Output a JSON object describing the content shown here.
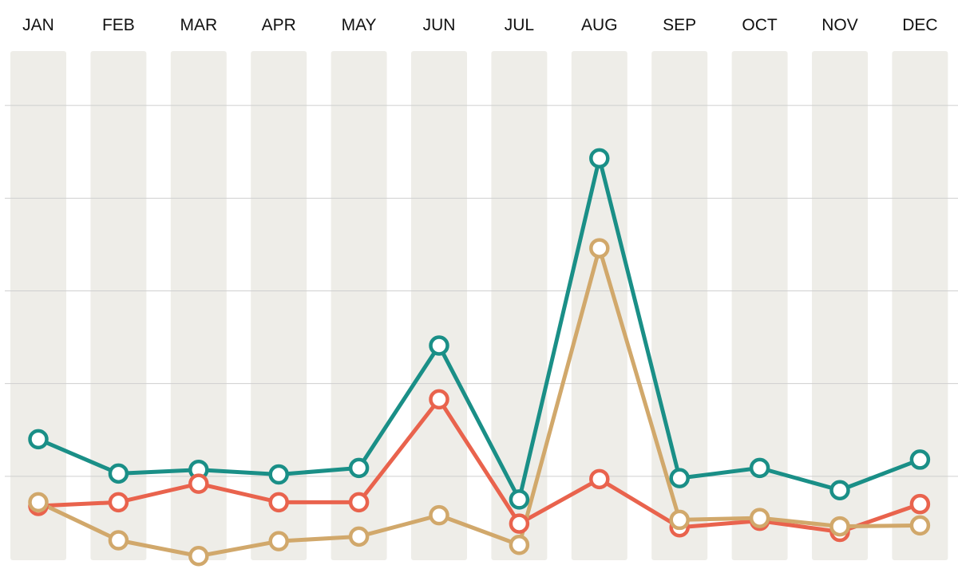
{
  "chart_data": {
    "type": "line",
    "categories": [
      "JAN",
      "FEB",
      "MAR",
      "APR",
      "MAY",
      "JUN",
      "JUL",
      "AUG",
      "SEP",
      "OCT",
      "NOV",
      "DEC"
    ],
    "ylim": [
      0,
      6
    ],
    "grid": true,
    "series": [
      {
        "color": "#1a8f87",
        "values": [
          1.4,
          1.03,
          1.07,
          1.02,
          1.09,
          2.41,
          0.75,
          4.43,
          0.98,
          1.09,
          0.85,
          1.18
        ]
      },
      {
        "color": "#e9634d",
        "values": [
          0.68,
          0.72,
          0.92,
          0.72,
          0.72,
          1.83,
          0.49,
          0.97,
          0.45,
          0.52,
          0.4,
          0.7
        ]
      },
      {
        "color": "#d1a86b",
        "values": [
          0.72,
          0.31,
          0.14,
          0.3,
          0.35,
          0.58,
          0.26,
          3.46,
          0.53,
          0.55,
          0.46,
          0.47
        ]
      }
    ],
    "band_color": "#eeede8",
    "grid_color": "#cfcfcf"
  }
}
